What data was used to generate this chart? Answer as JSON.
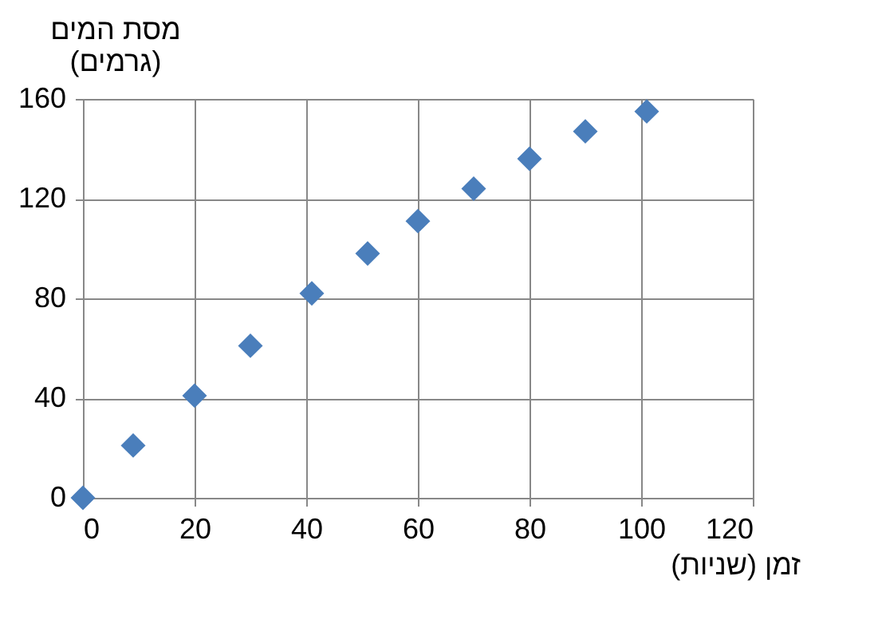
{
  "chart_data": {
    "type": "scatter",
    "ylabel": "מסת המים\n(גרמים)",
    "xlabel": "זמן (שניות)",
    "x": [
      0,
      9,
      20,
      30,
      41,
      51,
      60,
      70,
      80,
      90,
      101
    ],
    "series": [
      {
        "color": "#4a7ebb",
        "values": [
          0,
          21,
          41,
          61,
          82,
          98,
          111,
          124,
          136,
          147,
          155
        ]
      }
    ],
    "xlim": [
      0,
      120
    ],
    "xticks": [
      0,
      20,
      40,
      60,
      80,
      100,
      120
    ],
    "ylim": [
      0,
      160
    ],
    "yticks": [
      0,
      40,
      80,
      120,
      160
    ],
    "grid": true,
    "marker": "diamond",
    "legend": false
  }
}
